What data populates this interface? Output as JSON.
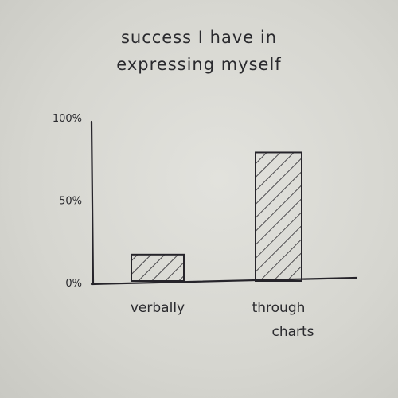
{
  "chart_data": {
    "type": "bar",
    "title": "success I have in expressing myself",
    "title_lines": [
      "success I have in",
      "expressing myself"
    ],
    "categories": [
      "verbally",
      "through charts"
    ],
    "category_lines": [
      [
        "verbally"
      ],
      [
        "through",
        "charts"
      ]
    ],
    "values": [
      17,
      79
    ],
    "ylim": [
      0,
      100
    ],
    "yticks": [
      0,
      50,
      100
    ],
    "ytick_labels": [
      "0%",
      "50%",
      "100%"
    ],
    "xlabel": "",
    "ylabel": "",
    "grid": false,
    "bar_fill": "hatched",
    "ink_color": "#26242a"
  }
}
